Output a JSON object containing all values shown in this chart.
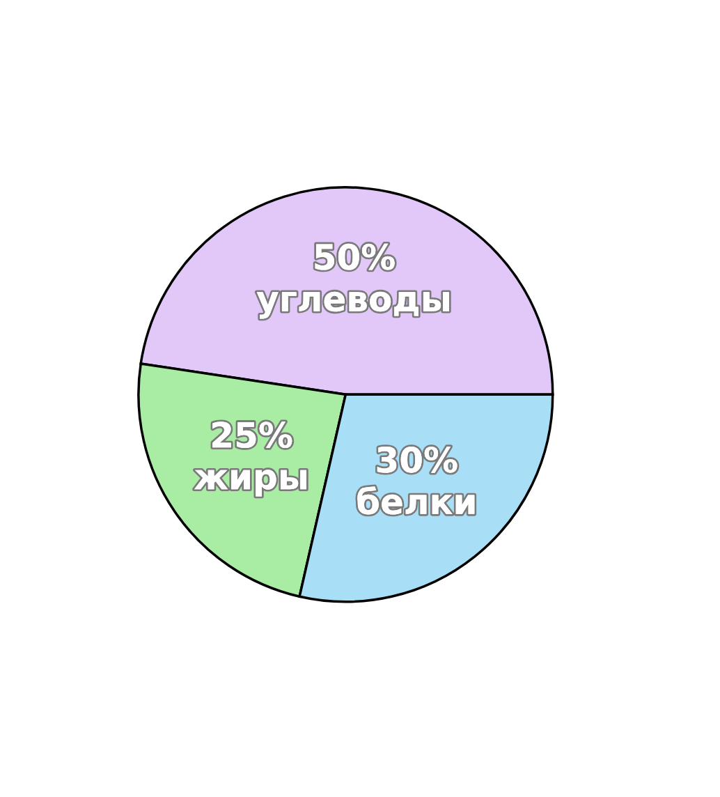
{
  "chart_data": {
    "type": "pie",
    "categories": [
      "углеводы",
      "жиры",
      "белки"
    ],
    "values": [
      50,
      25,
      30
    ],
    "value_labels": [
      "50%",
      "25%",
      "30%"
    ],
    "colors": [
      "#e2c8f8",
      "#a9eca3",
      "#a8dff6"
    ],
    "legend": false
  }
}
